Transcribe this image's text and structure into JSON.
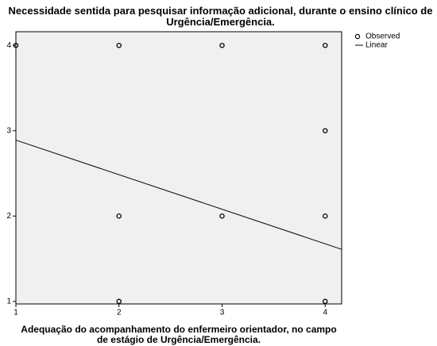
{
  "chart_data": {
    "type": "scatter",
    "title": "Necessidade sentida para pesquisar informação adicional, durante o ensino clínico de Urgência/Emergência.",
    "x_label": "Adequação do acompanhamento do enfermeiro orientador, no campo de estágio de Urgência/Emergência.",
    "xlim": [
      1,
      4.16
    ],
    "ylim": [
      0.97,
      4.16
    ],
    "xticks": [
      1,
      2,
      3,
      4
    ],
    "yticks": [
      1,
      2,
      3,
      4
    ],
    "legend": "top-right",
    "series": [
      {
        "name": "Observed",
        "color": "#000000",
        "marker": "circle",
        "x": [
          1,
          2,
          3,
          4,
          4,
          2,
          3,
          4,
          2,
          4
        ],
        "values": [
          4,
          4,
          4,
          4,
          3,
          2,
          2,
          2,
          1,
          1
        ]
      },
      {
        "name": "Linear",
        "color": "#000000",
        "marker": "line",
        "x": [
          1,
          4.16
        ],
        "values": [
          2.89,
          1.61
        ]
      }
    ]
  }
}
